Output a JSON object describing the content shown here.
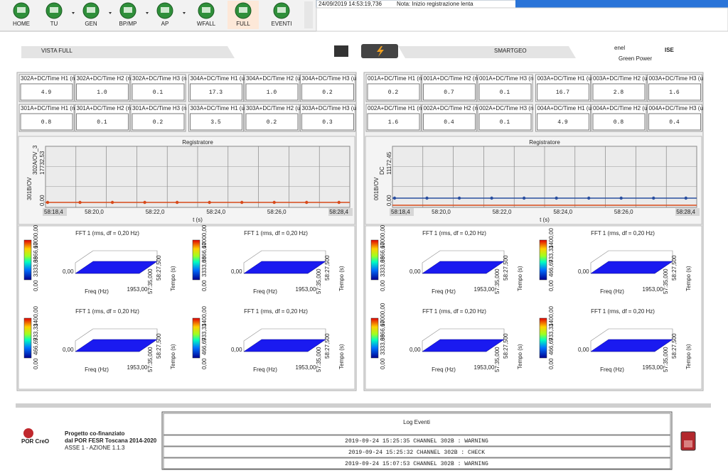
{
  "toolbar": {
    "buttons": [
      "HOME",
      "TU",
      "GEN",
      "BP/MP",
      "AP",
      "WFALL",
      "FULL",
      "EVENTI"
    ]
  },
  "status": {
    "timestamp": "24/09/2019 14:53:19,736",
    "note": "Nota: Inizio registrazione lenta"
  },
  "header": {
    "title": "VISTA FULL",
    "brand": "SMARTGEO",
    "enel": "enel",
    "enel_sub": "Green Power",
    "ise": "ISE"
  },
  "panels": [
    {
      "boxes": [
        {
          "label": "302A+DC/Time H1 (n",
          "value": "4.9"
        },
        {
          "label": "302A+DC/Time H2 (n",
          "value": "1.0"
        },
        {
          "label": "302A+DC/Time H3 (n",
          "value": "0.1"
        },
        {
          "label": "304A+DC/Time H1 (u",
          "value": "17.3"
        },
        {
          "label": "304A+DC/Time H2 (u",
          "value": "1.0"
        },
        {
          "label": "304A+DC/Time H3 (u",
          "value": "0.2"
        },
        {
          "label": "301A+DC/Time H1 (n",
          "value": "0.8"
        },
        {
          "label": "301A+DC/Time H2 (n",
          "value": "0.1"
        },
        {
          "label": "301A+DC/Time H3 (n",
          "value": "0.2"
        },
        {
          "label": "303A+DC/Time H1 (u",
          "value": "3.5"
        },
        {
          "label": "303A+DC/Time H2 (u",
          "value": "0.2"
        },
        {
          "label": "303A+DC/Time H3 (u",
          "value": "0.3"
        }
      ],
      "recorder": {
        "title": "Registratore",
        "xlabel": "t (s)",
        "xticks": [
          "58:18,4",
          "58:20,0",
          "58:22,0",
          "58:24,0",
          "58:26,0",
          "58:28,4"
        ],
        "ymin": "0,00",
        "ymax": "17732,53",
        "series": [
          "301B/OV",
          "302A/OV_3"
        ]
      },
      "ffts": [
        [
          "0,00",
          "3333,33",
          "6666,67",
          "10000,00"
        ],
        [
          "0,00",
          "3333,33",
          "6666,67",
          "10000,00"
        ],
        [
          "0,00",
          "466,67",
          "933,33",
          "1400,00"
        ],
        [
          "0,00",
          "466,67",
          "933,33",
          "1400,00"
        ]
      ]
    },
    {
      "boxes": [
        {
          "label": "001A+DC/Time H1 (n",
          "value": "0.2"
        },
        {
          "label": "001A+DC/Time H2 (n",
          "value": "0.7"
        },
        {
          "label": "001A+DC/Time H3 (n",
          "value": "0.1"
        },
        {
          "label": "003A+DC/Time H1 (u",
          "value": "16.7"
        },
        {
          "label": "003A+DC/Time H2 (u",
          "value": "2.8"
        },
        {
          "label": "003A+DC/Time H3 (u",
          "value": "1.6"
        },
        {
          "label": "002A+DC/Time H1 (n",
          "value": "1.6"
        },
        {
          "label": "002A+DC/Time H2 (n",
          "value": "0.4"
        },
        {
          "label": "002A+DC/Time H3 (n",
          "value": "0.1"
        },
        {
          "label": "004A+DC/Time H1 (u",
          "value": "4.9"
        },
        {
          "label": "004A+DC/Time H2 (u",
          "value": "0.8"
        },
        {
          "label": "004A+DC/Time H3 (u",
          "value": "0.4"
        }
      ],
      "recorder": {
        "title": "Registratore",
        "xlabel": "t (s)",
        "xticks": [
          "58:18,4",
          "58:20,0",
          "58:22,0",
          "58:24,0",
          "58:26,0",
          "58:28,4"
        ],
        "ymin": "0,00",
        "ymax": "11172,45",
        "series": [
          "001B/OV",
          "DC"
        ]
      },
      "ffts": [
        [
          "0,00",
          "3333,33",
          "6666,67",
          "10000,00"
        ],
        [
          "0,00",
          "466,67",
          "933,33",
          "1400,00"
        ],
        [
          "0,00",
          "3333,33",
          "6666,67",
          "10000,00"
        ],
        [
          "0,00",
          "466,67",
          "933,33",
          "1400,00"
        ]
      ]
    }
  ],
  "fft_common": {
    "title": "FFT 1 (rms, df = 0,20 Hz)",
    "xlabel": "Freq (Hz)",
    "ylabel": "Tempo (s)",
    "freq_min": "0,00",
    "freq_max": "1953,00",
    "t_min": "57:35,000",
    "t_max": "58:27,500"
  },
  "footer": {
    "project": [
      "Progetto co-finanziato",
      "dal POR FESR Toscana 2014-2020",
      "ASSE 1 - AZIONE 1.1.3"
    ],
    "logo": "POR CreO",
    "log_title": "Log Eventi",
    "log": [
      "2019-09-24 15:25:35 CHANNEL 302B : WARNING",
      "2019-09-24 15:25:32 CHANNEL 302B : CHECK",
      "2019-09-24 15:07:53 CHANNEL 302B : WARNING"
    ]
  }
}
